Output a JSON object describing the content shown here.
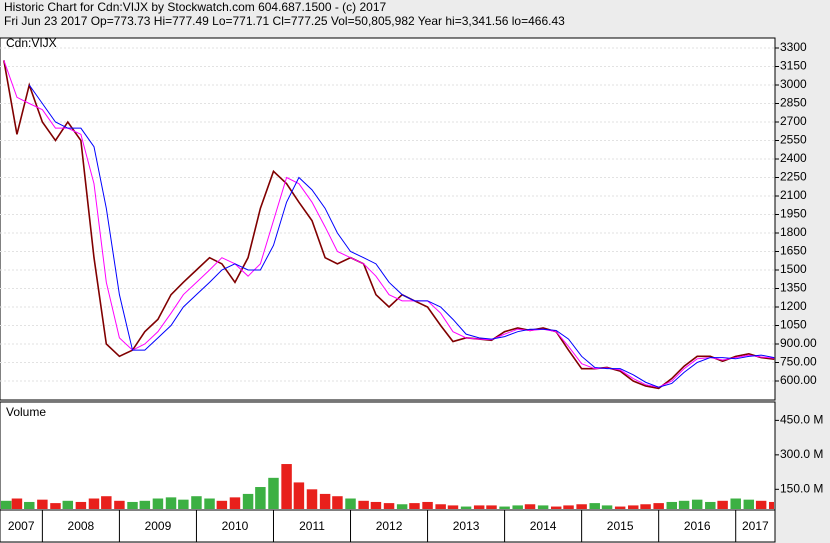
{
  "chart_data": [
    {
      "type": "line",
      "title": "Historic Chart for Cdn:VIJX by Stockwatch.com 604.687.1500 - (c) 2017",
      "subtitle": "Fri Jun 23 2017   Op=773.73   Hi=777.49   Lo=771.71   Cl=777.25   Vol=50,805,982   Year hi=3,341.56   lo=466.43",
      "label": "Cdn:VIJX",
      "x": [
        2007.5,
        2007.67,
        2007.83,
        2008,
        2008.17,
        2008.33,
        2008.5,
        2008.67,
        2008.83,
        2009,
        2009.17,
        2009.33,
        2009.5,
        2009.67,
        2009.83,
        2010,
        2010.17,
        2010.33,
        2010.5,
        2010.67,
        2010.83,
        2011,
        2011.17,
        2011.33,
        2011.5,
        2011.67,
        2011.83,
        2012,
        2012.17,
        2012.33,
        2012.5,
        2012.67,
        2012.83,
        2013,
        2013.17,
        2013.33,
        2013.5,
        2013.67,
        2013.83,
        2014,
        2014.17,
        2014.33,
        2014.5,
        2014.67,
        2014.83,
        2015,
        2015.17,
        2015.33,
        2015.5,
        2015.67,
        2015.83,
        2016,
        2016.17,
        2016.33,
        2016.5,
        2016.67,
        2016.83,
        2017,
        2017.17,
        2017.33,
        2017.5
      ],
      "series": [
        {
          "color": "#800000",
          "width": 1.6,
          "values": [
            3200,
            2600,
            3000,
            2700,
            2550,
            2700,
            2550,
            1600,
            900,
            800,
            850,
            1000,
            1100,
            1300,
            1400,
            1500,
            1600,
            1550,
            1400,
            1600,
            2000,
            2300,
            2200,
            2050,
            1900,
            1600,
            1550,
            1600,
            1550,
            1300,
            1200,
            1300,
            1250,
            1200,
            1050,
            920,
            950,
            940,
            930,
            1000,
            1030,
            1010,
            1030,
            1000,
            850,
            700,
            700,
            710,
            680,
            600,
            560,
            540,
            620,
            720,
            800,
            800,
            760,
            800,
            820,
            790,
            777
          ]
        },
        {
          "color": "#ff00ff",
          "width": 1,
          "values": [
            3200,
            2900,
            2850,
            2800,
            2650,
            2650,
            2600,
            2200,
            1400,
            950,
            850,
            900,
            1000,
            1150,
            1300,
            1400,
            1500,
            1600,
            1550,
            1450,
            1550,
            1900,
            2250,
            2200,
            2050,
            1850,
            1650,
            1600,
            1550,
            1450,
            1300,
            1250,
            1250,
            1250,
            1150,
            1000,
            950,
            940,
            935,
            980,
            1020,
            1010,
            1020,
            1000,
            880,
            740,
            700,
            705,
            690,
            620,
            570,
            550,
            600,
            700,
            780,
            790,
            770,
            790,
            810,
            795,
            785
          ]
        },
        {
          "color": "#0000ff",
          "width": 1,
          "values": [
            null,
            null,
            3000,
            2850,
            2700,
            2650,
            2650,
            2500,
            2000,
            1300,
            850,
            850,
            950,
            1050,
            1200,
            1300,
            1400,
            1500,
            1550,
            1500,
            1500,
            1700,
            2050,
            2250,
            2150,
            2000,
            1800,
            1650,
            1600,
            1550,
            1400,
            1300,
            1250,
            1250,
            1200,
            1100,
            980,
            950,
            940,
            960,
            1000,
            1020,
            1020,
            1010,
            940,
            800,
            710,
            700,
            700,
            650,
            590,
            550,
            580,
            670,
            750,
            790,
            790,
            780,
            800,
            810,
            790
          ]
        }
      ],
      "xlim": [
        2007.45,
        2017.51
      ],
      "ylim": [
        446,
        3381
      ],
      "yticks": [
        {
          "value": 600,
          "label": "600.00"
        },
        {
          "value": 750,
          "label": "750.00"
        },
        {
          "value": 900,
          "label": "900.00"
        },
        1050,
        1200,
        1350,
        1500,
        1650,
        1800,
        1950,
        2100,
        2250,
        2400,
        2550,
        2700,
        2850,
        3000,
        3150,
        3300
      ],
      "grid": true
    },
    {
      "type": "bar",
      "label": "Volume",
      "up_color": "#3cb043",
      "down_color": "#e8201c",
      "values": [
        100,
        110,
        95,
        105,
        90,
        100,
        95,
        110,
        120,
        100,
        95,
        100,
        110,
        115,
        105,
        120,
        110,
        100,
        115,
        130,
        160,
        200,
        260,
        180,
        150,
        130,
        120,
        110,
        100,
        95,
        90,
        85,
        90,
        95,
        85,
        80,
        75,
        80,
        80,
        75,
        80,
        85,
        80,
        75,
        80,
        85,
        90,
        80,
        75,
        80,
        85,
        90,
        95,
        100,
        105,
        95,
        100,
        110,
        105,
        100,
        95
      ],
      "ylim": [
        60,
        530
      ],
      "yticks": [
        {
          "value": 150,
          "label": "150.0 M"
        },
        {
          "value": 300,
          "label": "300.0 M"
        },
        {
          "value": 450,
          "label": "450.0 M"
        }
      ],
      "xticks": [
        2007,
        2008,
        2009,
        2010,
        2011,
        2012,
        2013,
        2014,
        2015,
        2016,
        2017
      ]
    }
  ]
}
